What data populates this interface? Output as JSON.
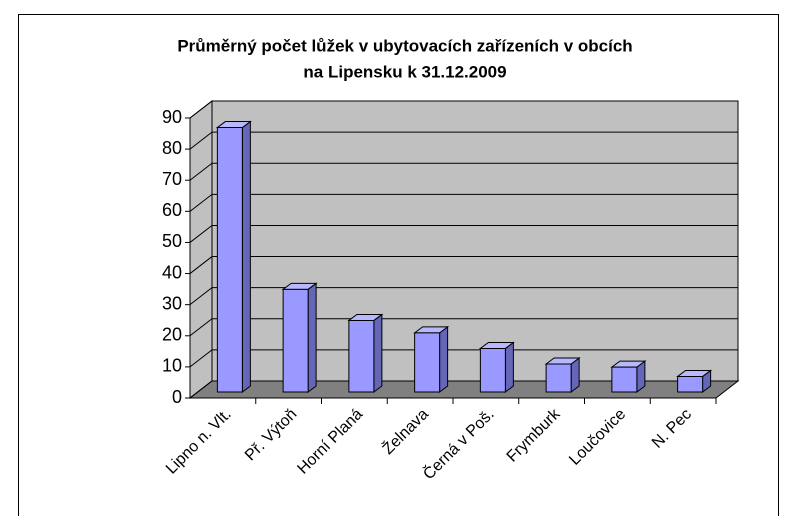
{
  "chart_data": {
    "type": "bar",
    "title": [
      "Průměrný počet lůžek v ubytovacích zařízeních v obcích",
      "na Lipensku k 31.12.2009"
    ],
    "categories": [
      "Lipno n. Vlt.",
      "Př. Výtoň",
      "Horní Planá",
      "Želnava",
      "Černá v Poš.",
      "Frymburk",
      "Loučovice",
      "N. Pec"
    ],
    "values": [
      85,
      33,
      23,
      19,
      14,
      9,
      8,
      5
    ],
    "color": "#9999ff",
    "ylim": [
      0,
      90
    ],
    "yticks": [
      0,
      10,
      20,
      30,
      40,
      50,
      60,
      70,
      80,
      90
    ],
    "grid": true
  }
}
